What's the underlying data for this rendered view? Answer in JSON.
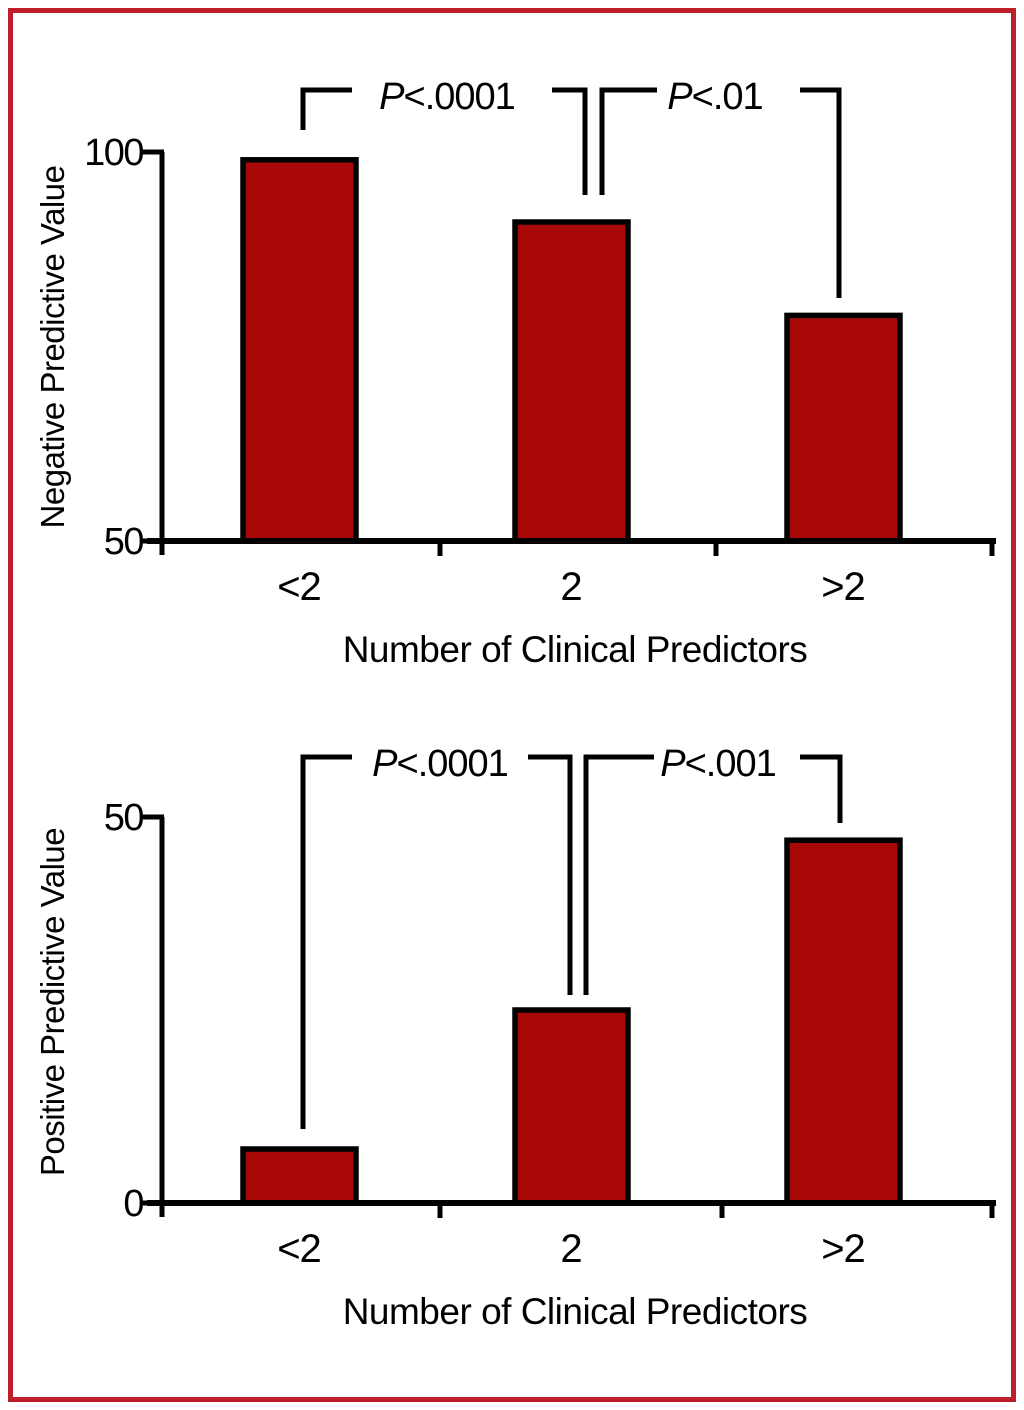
{
  "figure": {
    "frame_border_color": "#bf1e2d",
    "background_color": "#ffffff",
    "bar_fill_color": "#a80808",
    "bar_stroke_color": "#000000"
  },
  "chart_data": [
    {
      "type": "bar",
      "panel": "top",
      "title": "",
      "categories": [
        "<2",
        "2",
        ">2"
      ],
      "values": [
        99,
        91,
        79
      ],
      "ylabel": "Negative Predictive Value",
      "xlabel": "Number of Clinical Predictors",
      "ylim": [
        50,
        100
      ],
      "yticks": [
        50,
        100
      ],
      "grid": false,
      "bar_color": "#a80808",
      "annotations": [
        {
          "label": "P<.0001",
          "between": [
            "<2",
            "2"
          ]
        },
        {
          "label": "P<.01",
          "between": [
            "2",
            ">2"
          ]
        }
      ]
    },
    {
      "type": "bar",
      "panel": "bottom",
      "title": "",
      "categories": [
        "<2",
        "2",
        ">2"
      ],
      "values": [
        7,
        25,
        47
      ],
      "ylabel": "Positive Predictive Value",
      "xlabel": "Number of Clinical Predictors",
      "ylim": [
        0,
        50
      ],
      "yticks": [
        0,
        50
      ],
      "grid": false,
      "bar_color": "#a80808",
      "annotations": [
        {
          "label": "P<.0001",
          "between": [
            "<2",
            "2"
          ]
        },
        {
          "label": "P<.001",
          "between": [
            "2",
            ">2"
          ]
        }
      ]
    }
  ]
}
